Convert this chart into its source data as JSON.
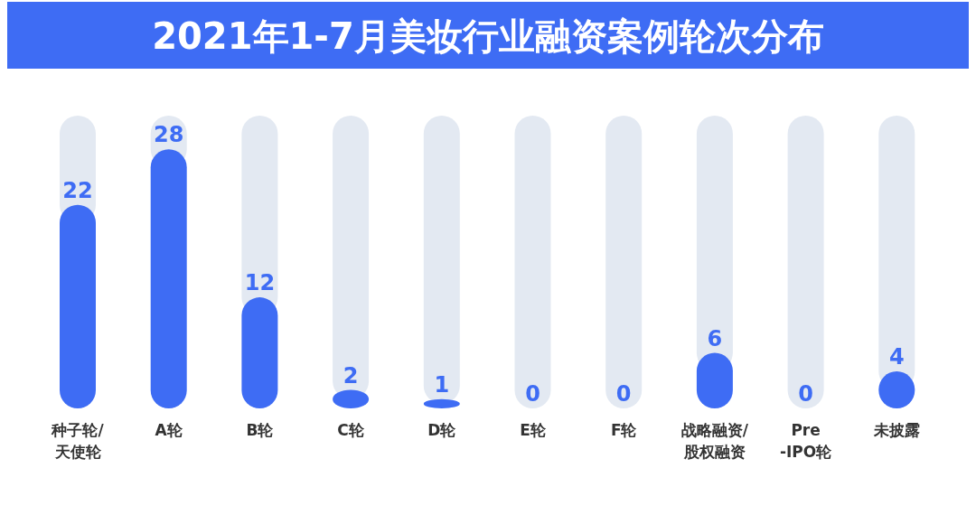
{
  "chart_data": {
    "type": "bar",
    "title": "2021年1-7月美妆行业融资案例轮次分布",
    "categories": [
      "种子轮/\n天使轮",
      "A轮",
      "B轮",
      "C轮",
      "D轮",
      "E轮",
      "F轮",
      "战略融资/\n股权融资",
      "Pre\n-IPO轮",
      "未披露"
    ],
    "values": [
      22,
      28,
      12,
      2,
      1,
      0,
      0,
      6,
      0,
      4
    ],
    "color": "#3e6cf4",
    "data_labels": true,
    "grid": "x"
  }
}
